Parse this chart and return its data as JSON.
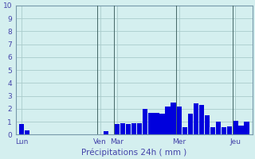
{
  "title": "",
  "xlabel": "Précipitations 24h ( mm )",
  "ylabel": "",
  "bg_color": "#d4efef",
  "bar_color": "#0000dd",
  "grid_color": "#aacccc",
  "axis_label_color": "#4444aa",
  "tick_label_color": "#4444aa",
  "ylim": [
    0,
    10
  ],
  "yticks": [
    0,
    1,
    2,
    3,
    4,
    5,
    6,
    7,
    8,
    9,
    10
  ],
  "day_labels": [
    "Lun",
    "Ven",
    "Mar",
    "Mer",
    "Jeu"
  ],
  "day_positions": [
    1,
    15,
    18,
    29,
    39
  ],
  "bar_values": [
    0.85,
    0.35,
    0.0,
    0.0,
    0.0,
    0.0,
    0.0,
    0.0,
    0.0,
    0.0,
    0.0,
    0.0,
    0.0,
    0.0,
    0.0,
    0.3,
    0.0,
    0.85,
    0.9,
    0.85,
    0.9,
    0.9,
    2.0,
    1.7,
    1.7,
    1.6,
    2.2,
    2.5,
    2.2,
    0.55,
    1.6,
    2.4,
    2.3,
    1.5,
    0.6,
    1.0,
    0.6,
    0.65,
    1.1,
    0.7,
    1.0
  ],
  "vline_positions": [
    14.5,
    17.5,
    28.5,
    38.5
  ],
  "vline_color": "#446666"
}
